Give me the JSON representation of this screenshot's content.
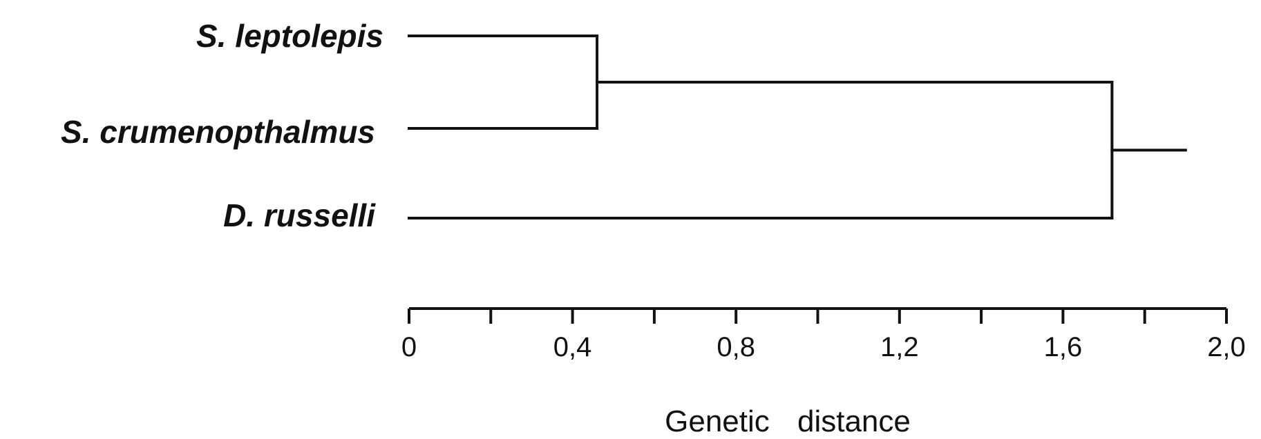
{
  "taxa": [
    {
      "id": "a",
      "label": "S. leptolepis"
    },
    {
      "id": "b",
      "label": "S. crumenopthalmus"
    },
    {
      "id": "c",
      "label": "D. russelli"
    }
  ],
  "clusters": [
    {
      "id": "ab",
      "join": [
        "a",
        "b"
      ],
      "distance": 0.46
    },
    {
      "id": "root",
      "join": [
        "ab",
        "c"
      ],
      "distance": 1.72
    }
  ],
  "root_stub_distance": 1.9,
  "axis": {
    "min": 0,
    "max": 2.0,
    "ticks": [
      0,
      0.2,
      0.4,
      0.6,
      0.8,
      1.0,
      1.2,
      1.4,
      1.6,
      1.8,
      2.0
    ],
    "labeled_ticks": [
      {
        "value": 0,
        "label": "0"
      },
      {
        "value": 0.4,
        "label": "0,4"
      },
      {
        "value": 0.8,
        "label": "0,8"
      },
      {
        "value": 1.2,
        "label": "1,2"
      },
      {
        "value": 1.6,
        "label": "1,6"
      },
      {
        "value": 2.0,
        "label": "2,0"
      }
    ],
    "title": "Genetic distance"
  }
}
